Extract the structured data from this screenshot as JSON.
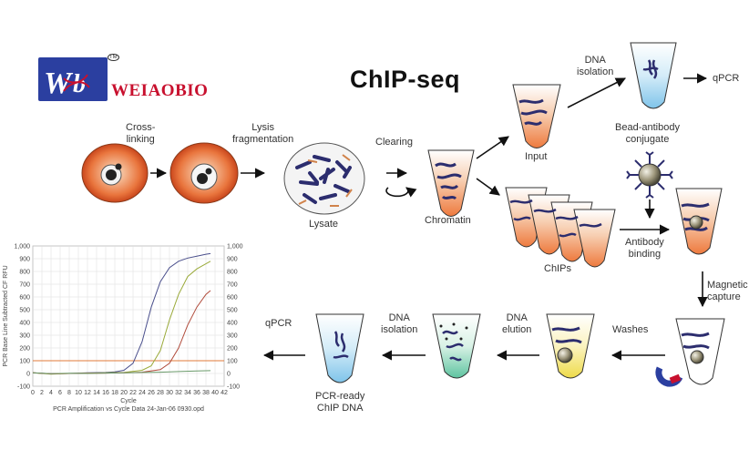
{
  "title": "ChIP-seq",
  "logo": {
    "text": "WEIAOBIO",
    "tm": "TM",
    "mark_color": "#2b3fa0",
    "accent_color": "#c8102e"
  },
  "steps": {
    "crosslinking": "Cross-\nlinking",
    "lysis": "Lysis\nfragmentation",
    "clearing": "Clearing",
    "lysate": "Lysate",
    "chromatin": "Chromatin",
    "input": "Input",
    "dna_isolation_top": "DNA\nisolation",
    "qpcr_top": "qPCR",
    "bead_antibody": "Bead-antibody\nconjugate",
    "chips": "ChIPs",
    "antibody_binding": "Antibody\nbinding",
    "magnetic_capture": "Magnetic\ncapture",
    "washes": "Washes",
    "dna_elution": "DNA\nelution",
    "dna_isolation_bottom": "DNA\nisolation",
    "qpcr_bottom": "qPCR",
    "pcr_ready": "PCR-ready\nChIP DNA"
  },
  "chart_data": {
    "type": "line",
    "xlabel": "Cycle",
    "ylabel": "PCR Base Line Subtracted CF RFU",
    "caption": "PCR Amplification vs Cycle Data 24-Jan-06 0930.opd",
    "xlim": [
      0,
      42
    ],
    "ylim": [
      -100,
      1000
    ],
    "x_ticks": [
      0,
      2,
      4,
      6,
      8,
      10,
      12,
      14,
      16,
      18,
      20,
      22,
      24,
      26,
      28,
      30,
      32,
      34,
      36,
      38,
      40,
      42
    ],
    "y_ticks_left": [
      -100,
      0,
      100,
      200,
      300,
      400,
      500,
      600,
      700,
      800,
      900,
      1000
    ],
    "y_ticks_right": [
      "-100",
      "0",
      "100",
      "200",
      "300",
      "400",
      "500",
      "600",
      "700",
      "800",
      "900",
      "1,000"
    ],
    "y_tick_labels_left": [
      "-100",
      "0",
      "100",
      "200",
      "300",
      "400",
      "500",
      "600",
      "700",
      "800",
      "900",
      "1,000"
    ],
    "threshold": {
      "value": 100,
      "color": "#e07a3a"
    },
    "grid": true,
    "series": [
      {
        "color": "#4a4f8c",
        "x": [
          0,
          4,
          8,
          12,
          16,
          18,
          20,
          22,
          24,
          26,
          28,
          30,
          32,
          34,
          36,
          38,
          39
        ],
        "y": [
          5,
          -2,
          0,
          5,
          8,
          12,
          25,
          80,
          250,
          520,
          720,
          830,
          880,
          905,
          920,
          935,
          940
        ]
      },
      {
        "color": "#9aaa3a",
        "x": [
          0,
          4,
          8,
          12,
          16,
          20,
          24,
          26,
          28,
          30,
          32,
          34,
          36,
          38,
          39
        ],
        "y": [
          5,
          -5,
          0,
          3,
          5,
          8,
          25,
          60,
          180,
          420,
          620,
          760,
          820,
          860,
          880
        ]
      },
      {
        "color": "#b04a3a",
        "x": [
          0,
          4,
          8,
          12,
          16,
          20,
          24,
          28,
          30,
          32,
          34,
          36,
          38,
          39
        ],
        "y": [
          5,
          -3,
          0,
          2,
          3,
          5,
          10,
          30,
          80,
          200,
          380,
          520,
          620,
          650
        ]
      },
      {
        "color": "#6a9a6a",
        "x": [
          0,
          4,
          8,
          12,
          16,
          20,
          24,
          28,
          32,
          36,
          39
        ],
        "y": [
          5,
          -2,
          2,
          0,
          3,
          5,
          8,
          10,
          15,
          20,
          22
        ]
      }
    ]
  }
}
